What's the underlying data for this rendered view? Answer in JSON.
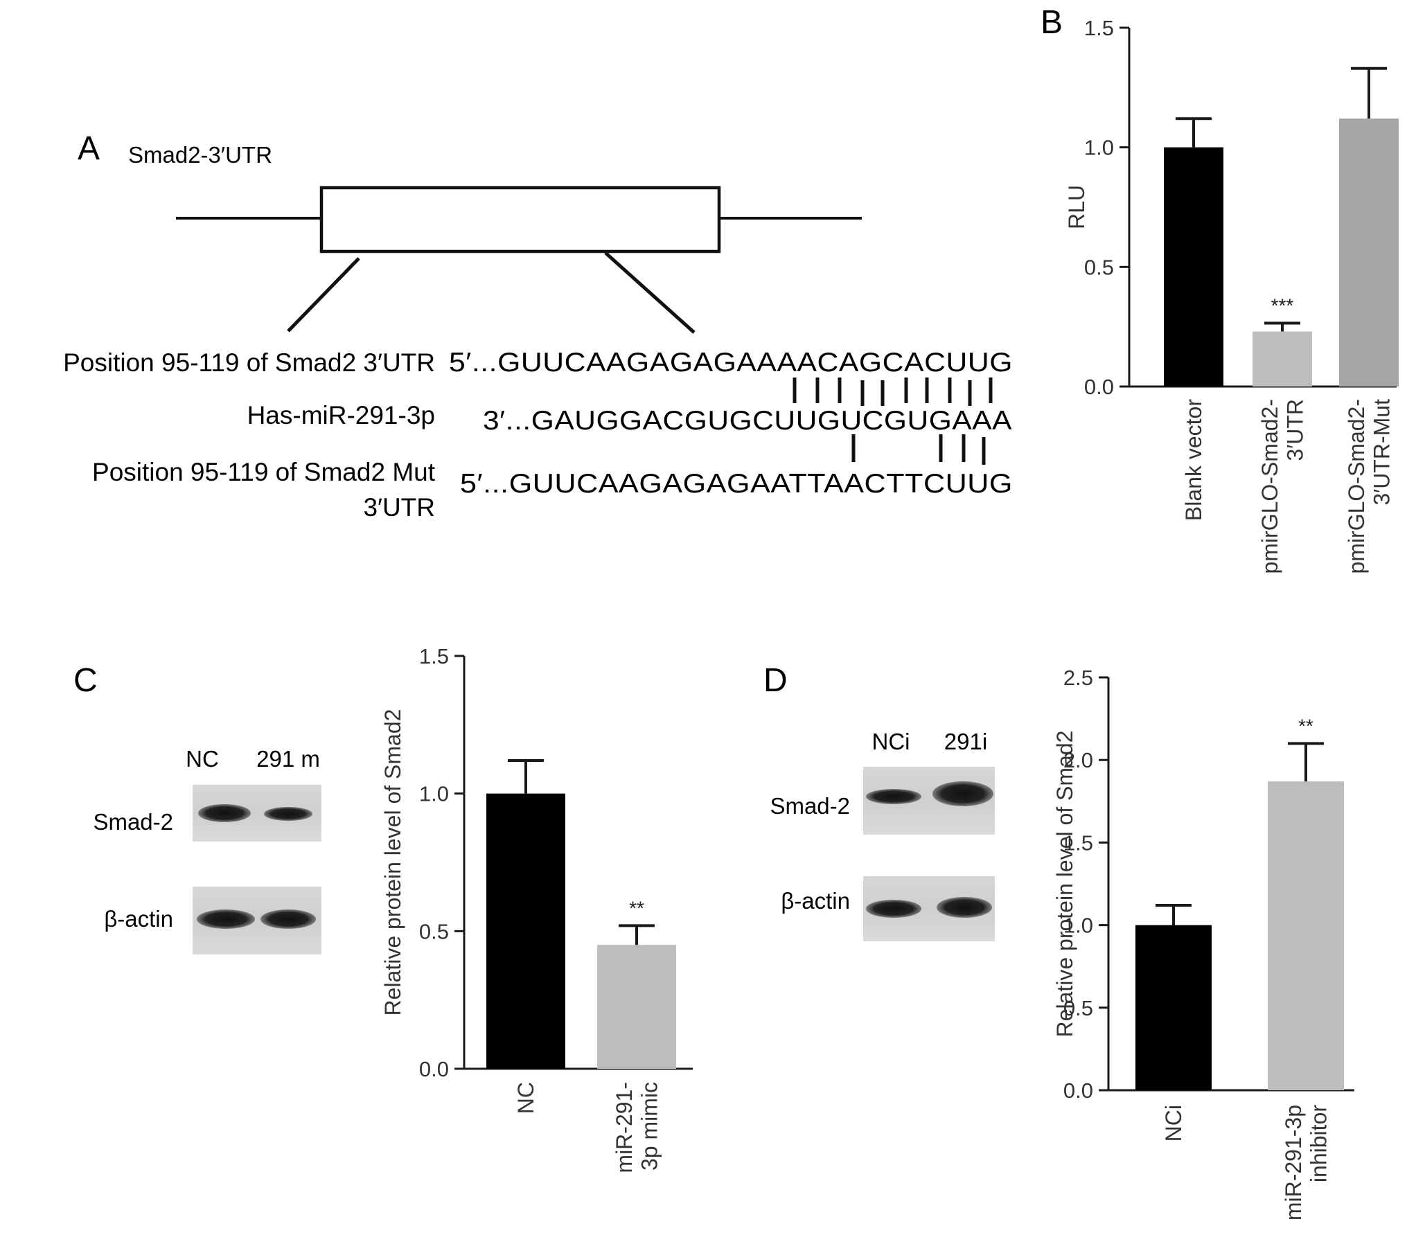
{
  "panels": {
    "A": "A",
    "B": "B",
    "C": "C",
    "D": "D"
  },
  "panel_a": {
    "gene_label": "Smad2-3′UTR",
    "row1_label": "Position 95-119 of Smad2 3′UTR",
    "row1_seq": "5′...GUUCAAGAGAGAAAACAGCACUUG",
    "row2_label": "Has-miR-291-3p",
    "row2_seq": "3′...GAUGGACGUGCUUGUCGUGAAA",
    "row3_label_line1": "Position 95-119 of Smad2 Mut",
    "row3_label_line2": "3′UTR",
    "row3_seq": "5′...GUUCAAGAGAGAATTAACTTCUUG"
  },
  "blots": {
    "c": {
      "lanes": [
        "NC",
        "291 m"
      ],
      "rows": [
        "Smad-2",
        "β-actin"
      ]
    },
    "d": {
      "lanes": [
        "NCi",
        "291i"
      ],
      "rows": [
        "Smad-2",
        "β-actin"
      ]
    }
  },
  "colors": {
    "black_bar": "#000000",
    "light_gray_bar": "#bdbdbd",
    "mid_gray_bar": "#a6a6a6"
  },
  "chart_data": [
    {
      "panel": "B",
      "type": "bar",
      "categories": [
        "Blank vector",
        "pmirGLO-Smad2-\n3′UTR",
        "pmirGLO-Smad2-\n3′UTR-Mut"
      ],
      "values": [
        1.0,
        0.23,
        1.12
      ],
      "errors": [
        0.12,
        0.035,
        0.21
      ],
      "annotations": [
        "",
        "***",
        ""
      ],
      "colors": [
        "#000000",
        "#bdbdbd",
        "#a6a6a6"
      ],
      "ylabel": "RLU",
      "ylim": [
        0,
        1.5
      ],
      "yticks": [
        "0.0",
        "0.5",
        "1.0",
        "1.5"
      ]
    },
    {
      "panel": "C",
      "type": "bar",
      "categories": [
        "NC",
        "miR-291-\n3p mimic"
      ],
      "values": [
        1.0,
        0.45
      ],
      "errors": [
        0.12,
        0.07
      ],
      "annotations": [
        "",
        "**"
      ],
      "colors": [
        "#000000",
        "#bdbdbd"
      ],
      "ylabel": "Relative protein level of Smad2",
      "ylim": [
        0,
        1.5
      ],
      "yticks": [
        "0.0",
        "0.5",
        "1.0",
        "1.5"
      ]
    },
    {
      "panel": "D",
      "type": "bar",
      "categories": [
        "NCi",
        "miR-291-3p\ninhibitor"
      ],
      "values": [
        1.0,
        1.87
      ],
      "errors": [
        0.12,
        0.23
      ],
      "annotations": [
        "",
        "**"
      ],
      "colors": [
        "#000000",
        "#bdbdbd"
      ],
      "ylabel": "Relative protein level of Smad2",
      "ylim": [
        0,
        2.5
      ],
      "yticks": [
        "0.0",
        "0.5",
        "1.0",
        "1.5",
        "2.0",
        "2.5"
      ]
    }
  ]
}
